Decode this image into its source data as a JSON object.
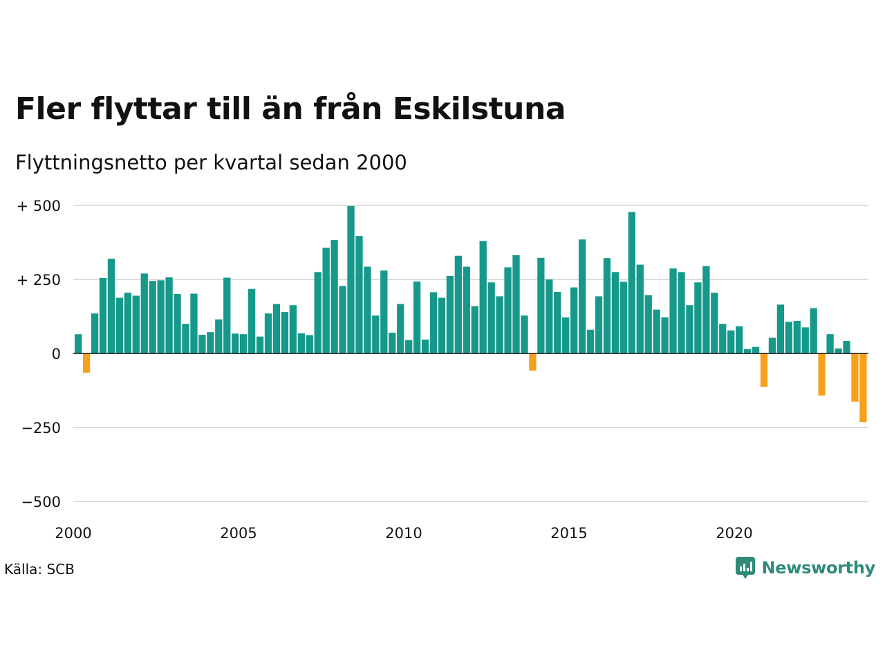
{
  "title": "Fler flyttar till än från Eskilstuna",
  "subtitle": "Flyttningsnetto per kvartal sedan 2000",
  "source": "Källa: SCB",
  "brand": "Newsworthy",
  "colors": {
    "positive": "#16998a",
    "negative": "#f7a01c",
    "grid": "#dddddd",
    "zero": "#111111",
    "brand": "#2f8a7a"
  },
  "chart_data": {
    "type": "bar",
    "x_start_year": 2000,
    "periods_per_year": 4,
    "ylim": [
      -500,
      500
    ],
    "y_ticks": [
      {
        "value": 500,
        "label": "+ 500"
      },
      {
        "value": 250,
        "label": "+ 250"
      },
      {
        "value": 0,
        "label": "0"
      },
      {
        "value": -250,
        "label": "−250"
      },
      {
        "value": -500,
        "label": "−500"
      }
    ],
    "x_ticks": [
      {
        "value": 2000,
        "label": "2000"
      },
      {
        "value": 2005,
        "label": "2005"
      },
      {
        "value": 2010,
        "label": "2010"
      },
      {
        "value": 2015,
        "label": "2015"
      },
      {
        "value": 2020,
        "label": "2020"
      }
    ],
    "values": [
      65,
      -65,
      135,
      255,
      320,
      188,
      205,
      195,
      270,
      245,
      247,
      257,
      201,
      100,
      202,
      63,
      72,
      115,
      256,
      67,
      65,
      218,
      57,
      135,
      167,
      140,
      163,
      68,
      62,
      275,
      357,
      383,
      228,
      498,
      397,
      293,
      128,
      280,
      70,
      167,
      45,
      243,
      47,
      207,
      188,
      262,
      330,
      293,
      160,
      380,
      240,
      193,
      291,
      332,
      128,
      -58,
      323,
      250,
      208,
      122,
      223,
      385,
      80,
      193,
      322,
      275,
      242,
      478,
      300,
      197,
      148,
      122,
      287,
      275,
      163,
      240,
      295,
      205,
      100,
      78,
      92,
      15,
      22,
      -113,
      53,
      165,
      107,
      110,
      88,
      153,
      -142,
      65,
      17,
      42,
      -163,
      -232
    ]
  }
}
